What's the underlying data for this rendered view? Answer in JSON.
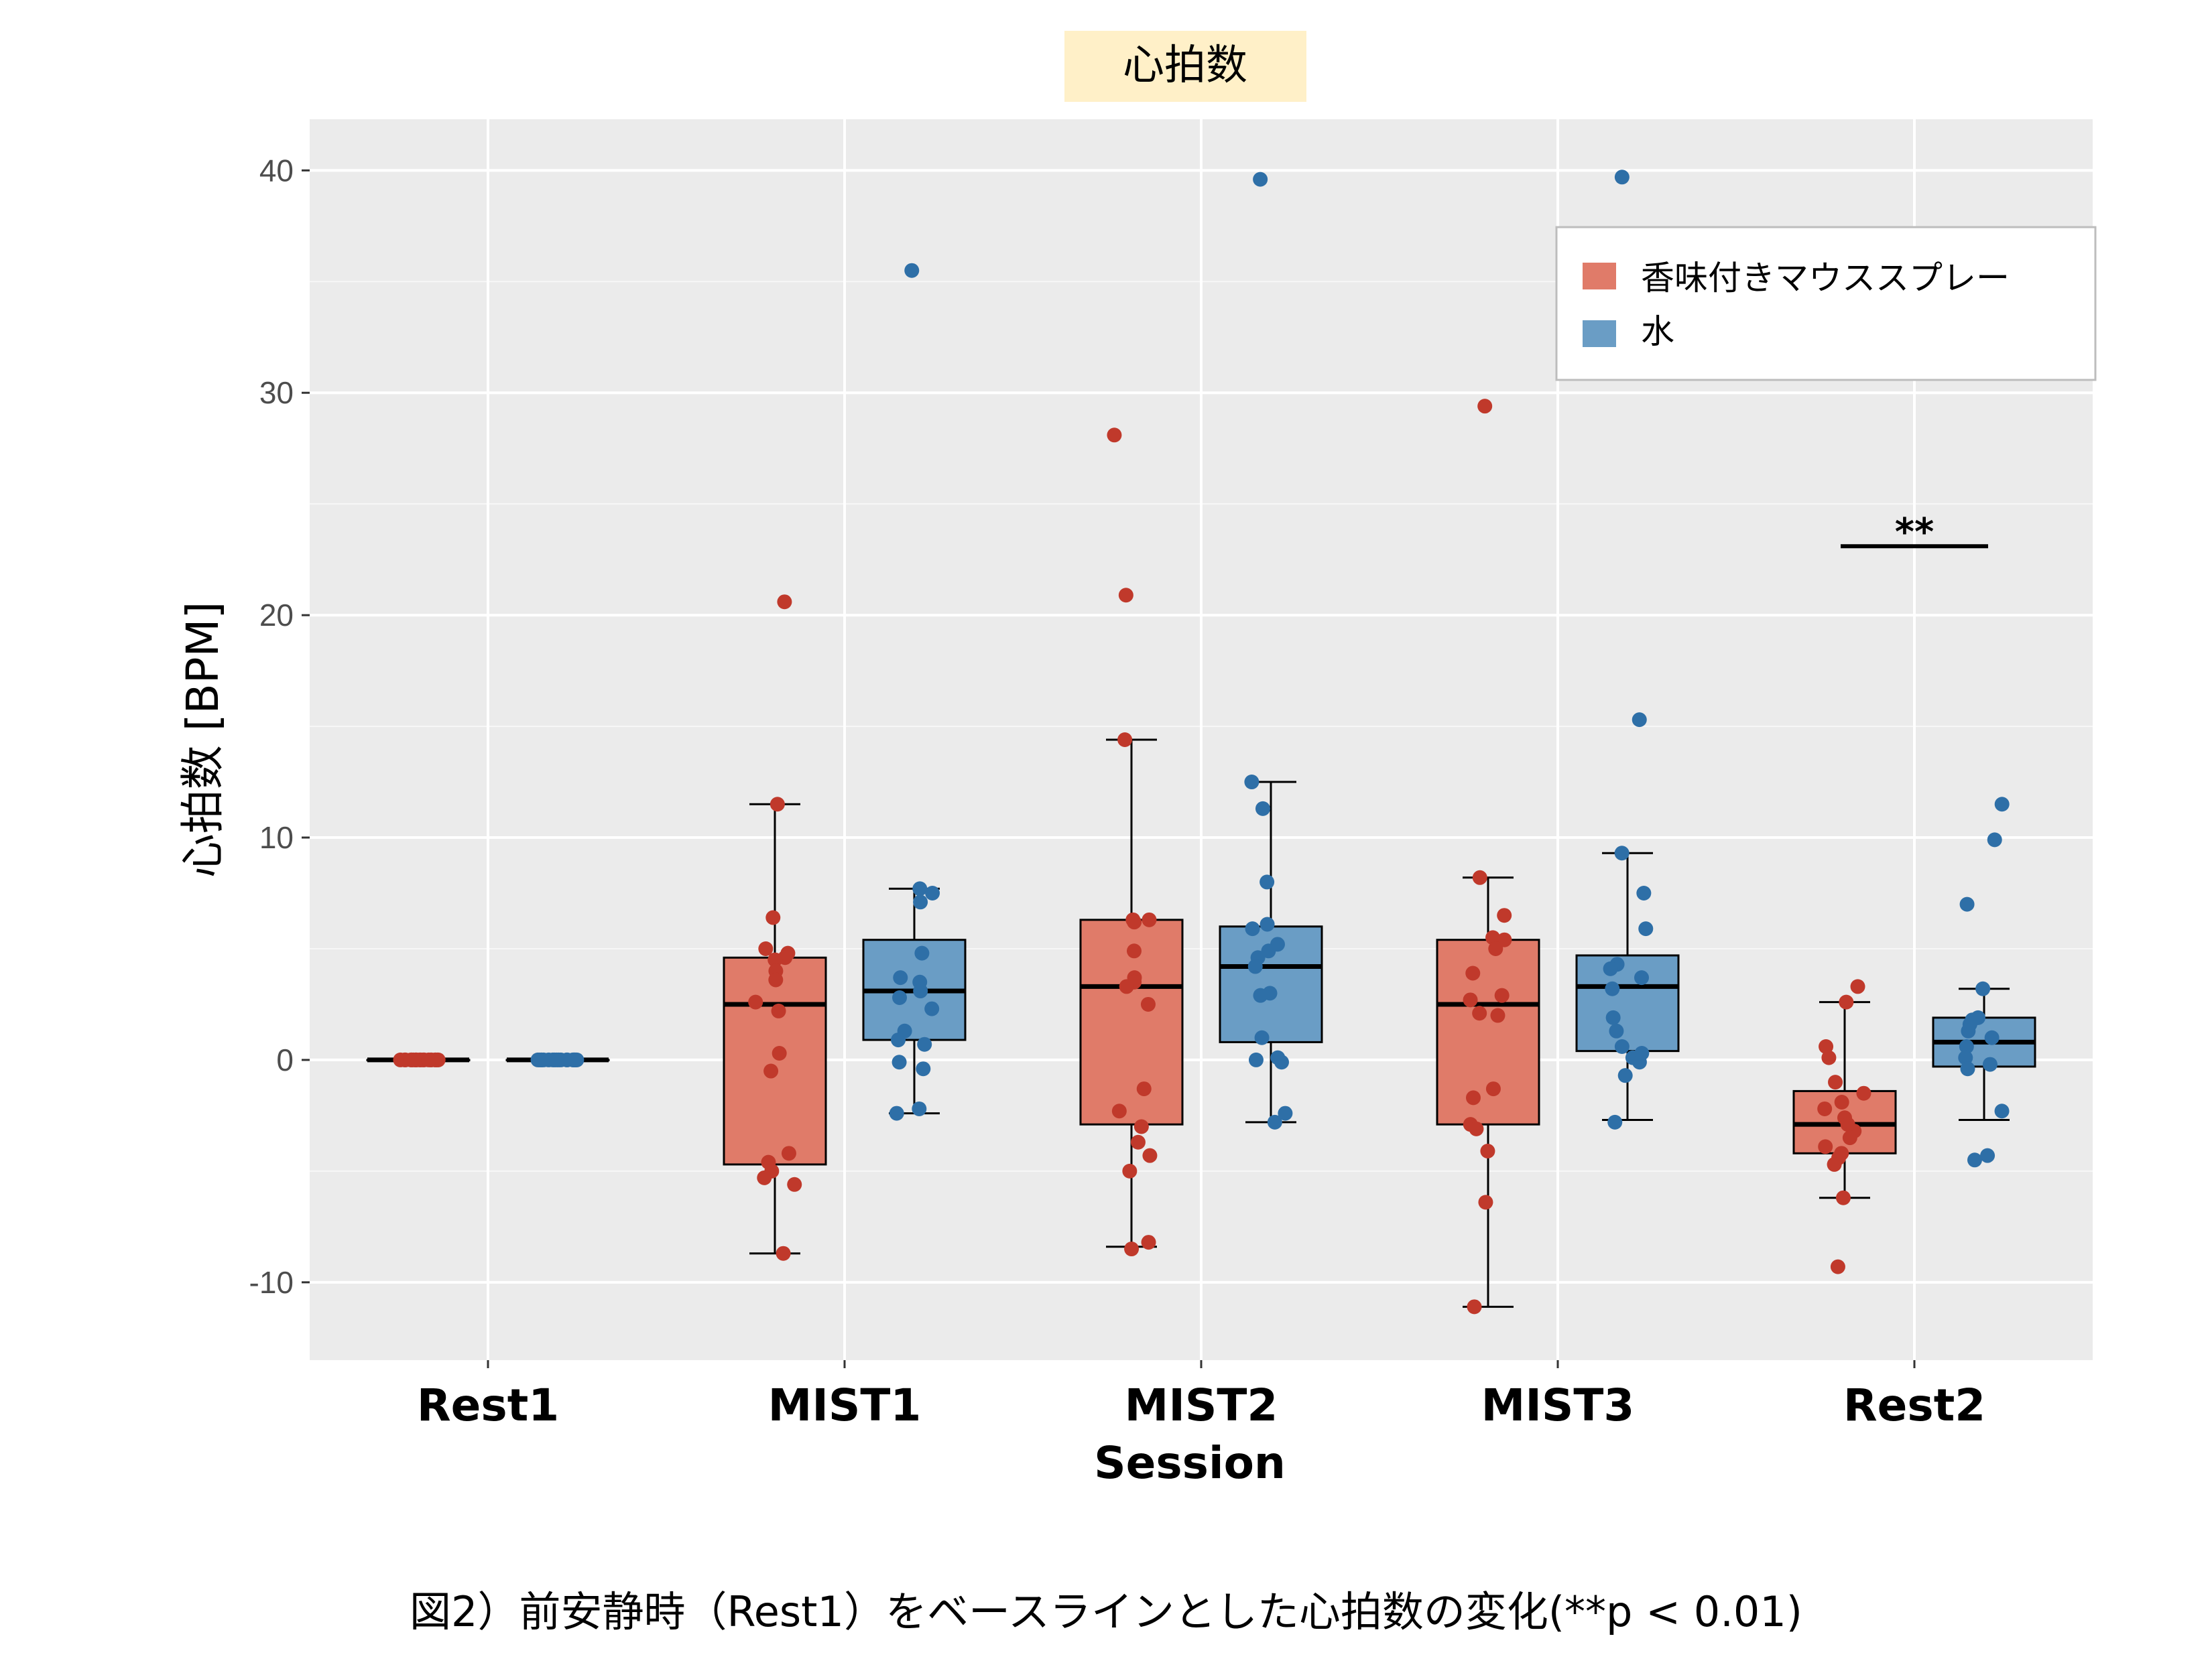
{
  "chart_data": {
    "type": "box",
    "title": "心拍数",
    "xlabel": "Session",
    "ylabel": "心拍数 [BPM]",
    "ylim": [
      -13.5,
      42.3
    ],
    "yticks": [
      -10,
      0,
      10,
      20,
      30,
      40
    ],
    "ytick_labels": [
      "-10",
      "0",
      "10",
      "20",
      "30",
      "40"
    ],
    "categories": [
      "Rest1",
      "MIST1",
      "MIST2",
      "MIST3",
      "Rest2"
    ],
    "grid": true,
    "legend_position": "top-right",
    "series": [
      {
        "name": "香味付きマウススプレー",
        "color": "#E07B69",
        "point_color": "#C0392B",
        "boxes": [
          {
            "category": "Rest1",
            "q1": 0,
            "median": 0,
            "q3": 0,
            "whisker_low": 0,
            "whisker_high": 0
          },
          {
            "category": "MIST1",
            "q1": -4.7,
            "median": 2.5,
            "q3": 4.6,
            "whisker_low": -8.7,
            "whisker_high": 11.5
          },
          {
            "category": "MIST2",
            "q1": -2.9,
            "median": 3.3,
            "q3": 6.3,
            "whisker_low": -8.4,
            "whisker_high": 14.4
          },
          {
            "category": "MIST3",
            "q1": -2.9,
            "median": 2.5,
            "q3": 5.4,
            "whisker_low": -11.1,
            "whisker_high": 8.2
          },
          {
            "category": "Rest2",
            "q1": -4.2,
            "median": -2.9,
            "q3": -1.4,
            "whisker_low": -6.2,
            "whisker_high": 2.6
          }
        ],
        "points": [
          {
            "category": "Rest1",
            "values": [
              0,
              0,
              0,
              0,
              0,
              0,
              0,
              0,
              0,
              0,
              0,
              0,
              0,
              0,
              0,
              0,
              0,
              0,
              0,
              0
            ]
          },
          {
            "category": "MIST1",
            "values": [
              20.6,
              11.5,
              6.4,
              5.0,
              4.8,
              4.6,
              4.5,
              4.0,
              3.6,
              2.6,
              2.2,
              0.3,
              -0.5,
              -4.2,
              -4.6,
              -5.0,
              -5.3,
              -5.6,
              -8.7
            ]
          },
          {
            "category": "MIST2",
            "values": [
              28.1,
              20.9,
              14.4,
              6.3,
              6.3,
              6.2,
              4.9,
              3.7,
              3.5,
              3.3,
              2.5,
              -1.3,
              -2.3,
              -3.0,
              -3.7,
              -4.3,
              -5.0,
              -8.2,
              -8.5
            ]
          },
          {
            "category": "MIST3",
            "values": [
              29.4,
              8.2,
              6.5,
              5.5,
              5.4,
              5.0,
              3.9,
              2.9,
              2.7,
              2.1,
              2.0,
              -1.3,
              -1.7,
              -2.9,
              -3.1,
              -4.1,
              -6.4,
              -11.1
            ]
          },
          {
            "category": "Rest2",
            "values": [
              3.3,
              2.6,
              0.6,
              0.1,
              -1.0,
              -1.5,
              -1.9,
              -2.2,
              -2.6,
              -2.9,
              -3.2,
              -3.5,
              -3.9,
              -4.2,
              -4.4,
              -4.7,
              -6.2,
              -9.3
            ]
          }
        ]
      },
      {
        "name": "水",
        "color": "#6A9DC5",
        "point_color": "#2E6FA7",
        "boxes": [
          {
            "category": "Rest1",
            "q1": 0,
            "median": 0,
            "q3": 0,
            "whisker_low": 0,
            "whisker_high": 0
          },
          {
            "category": "MIST1",
            "q1": 0.9,
            "median": 3.1,
            "q3": 5.4,
            "whisker_low": -2.4,
            "whisker_high": 7.7
          },
          {
            "category": "MIST2",
            "q1": 0.8,
            "median": 4.2,
            "q3": 6.0,
            "whisker_low": -2.8,
            "whisker_high": 12.5
          },
          {
            "category": "MIST3",
            "q1": 0.4,
            "median": 3.3,
            "q3": 4.7,
            "whisker_low": -2.7,
            "whisker_high": 9.3
          },
          {
            "category": "Rest2",
            "q1": -0.3,
            "median": 0.8,
            "q3": 1.9,
            "whisker_low": -2.7,
            "whisker_high": 3.2
          }
        ],
        "points": [
          {
            "category": "Rest1",
            "values": [
              0,
              0,
              0,
              0,
              0,
              0,
              0,
              0,
              0,
              0,
              0,
              0,
              0,
              0,
              0,
              0,
              0,
              0,
              0,
              0
            ]
          },
          {
            "category": "MIST1",
            "values": [
              35.5,
              7.7,
              7.5,
              7.1,
              4.8,
              3.7,
              3.5,
              3.1,
              2.8,
              2.3,
              1.3,
              0.9,
              0.7,
              -0.1,
              -0.4,
              -2.2,
              -2.4
            ]
          },
          {
            "category": "MIST2",
            "values": [
              39.6,
              12.5,
              11.3,
              8.0,
              6.1,
              5.9,
              5.2,
              4.9,
              4.6,
              4.2,
              3.0,
              2.9,
              1.0,
              0.1,
              0,
              -0.1,
              -2.4,
              -2.8
            ]
          },
          {
            "category": "MIST3",
            "values": [
              39.7,
              15.3,
              9.3,
              7.5,
              5.9,
              4.3,
              4.1,
              3.7,
              3.2,
              1.9,
              1.3,
              0.6,
              0.3,
              0.1,
              -0.1,
              -0.7,
              -2.8
            ]
          },
          {
            "category": "Rest2",
            "values": [
              11.5,
              9.9,
              7.0,
              3.2,
              1.9,
              1.8,
              1.6,
              1.3,
              1.0,
              0.6,
              0.1,
              -0.2,
              -0.4,
              -2.3,
              -4.3,
              -4.5
            ]
          }
        ]
      }
    ],
    "annotations": [
      {
        "category": "Rest2",
        "text": "**",
        "y": 23.1
      }
    ]
  },
  "caption": "図2）前安静時（Rest1）をベースラインとした心拍数の変化(**p < 0.01)"
}
